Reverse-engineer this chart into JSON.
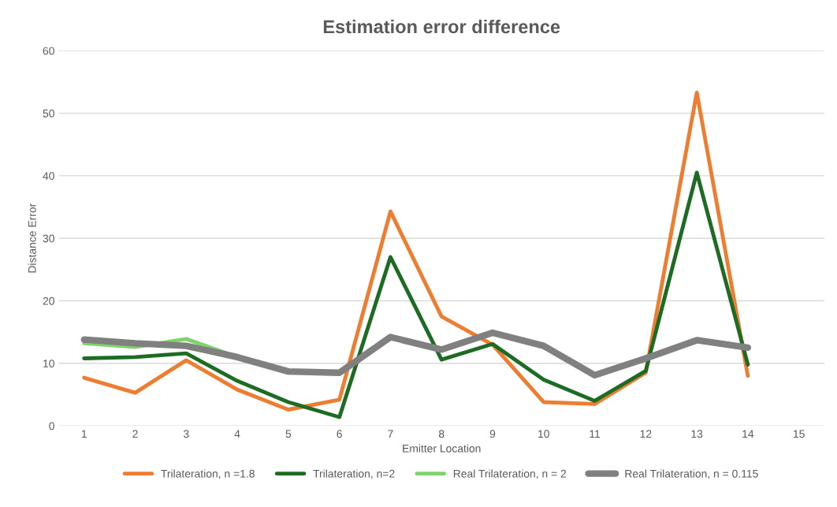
{
  "chart_data": {
    "type": "line",
    "title": "Estimation error difference",
    "xlabel": "Emitter Location",
    "ylabel": "Distance Error",
    "categories": [
      "1",
      "2",
      "3",
      "4",
      "5",
      "6",
      "7",
      "8",
      "9",
      "10",
      "11",
      "12",
      "13",
      "14",
      "15"
    ],
    "series": [
      {
        "name": "Trilateration, n =1.8",
        "color": "#ed7d31",
        "values": [
          7.7,
          5.3,
          10.5,
          5.8,
          2.6,
          4.2,
          34.3,
          17.5,
          13,
          3.8,
          3.5,
          8.5,
          53.3,
          8,
          null
        ]
      },
      {
        "name": "Trilateration, n=2",
        "color": "#1e6b24",
        "values": [
          10.8,
          11,
          11.6,
          7.2,
          3.8,
          1.4,
          27,
          10.6,
          13.1,
          7.4,
          4,
          8.8,
          40.5,
          9.8,
          null
        ]
      },
      {
        "name": "Real Trilateration, n = 2",
        "color": "#7fd36b",
        "values": [
          13.2,
          12.6,
          13.9,
          11,
          null,
          null,
          null,
          null,
          null,
          null,
          null,
          null,
          null,
          null,
          null
        ]
      },
      {
        "name": "Real Trilateration, n = 0.115",
        "color": "#808080",
        "values": [
          13.8,
          13.2,
          12.8,
          11,
          8.7,
          8.5,
          14.2,
          12.2,
          14.9,
          12.8,
          8.1,
          10.8,
          13.7,
          12.5,
          null
        ]
      }
    ],
    "ylim": [
      0,
      60
    ],
    "yticks": [
      0,
      10,
      20,
      30,
      40,
      50,
      60
    ],
    "grid": "y",
    "legend": "bottom"
  }
}
